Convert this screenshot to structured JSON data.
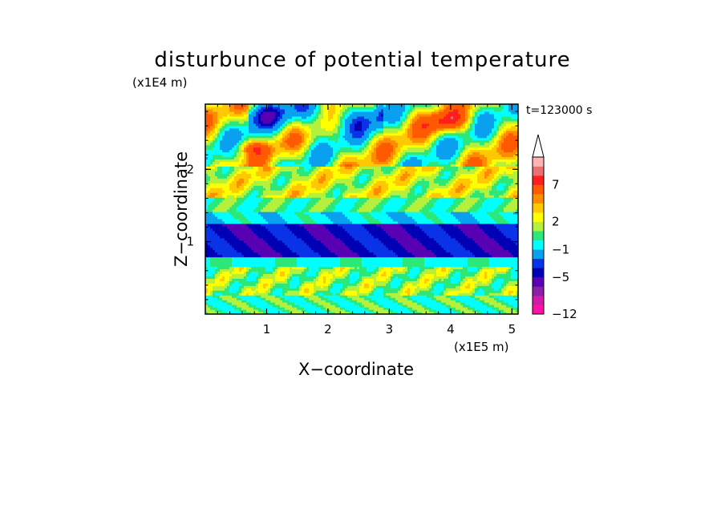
{
  "chart_data": {
    "type": "heatmap",
    "title": "disturbunce of potential temperature",
    "time_label": "t=123000 s",
    "xlabel": "X−coordinate",
    "ylabel": "Z−coordinate",
    "x_unit": "(x1E5 m)",
    "y_unit": "(x1E4 m)",
    "xlim": [
      0,
      5.1
    ],
    "ylim": [
      0,
      2.9
    ],
    "x_ticks": [
      1,
      2,
      3,
      4,
      5
    ],
    "x_tick_labels": [
      "1",
      "2",
      "3",
      "4",
      "5"
    ],
    "y_ticks": [
      1,
      2
    ],
    "y_tick_labels": [
      "1",
      "2"
    ],
    "colorbar": {
      "levels": [
        -12,
        -11,
        -9,
        -7,
        -5,
        -4,
        -3,
        -1,
        0,
        1,
        2,
        3,
        4,
        5,
        7,
        8,
        9
      ],
      "colors": [
        "#ff10a8",
        "#d21aa8",
        "#8c1ea8",
        "#5a00b4",
        "#0000b4",
        "#0a32e6",
        "#0aa0f0",
        "#00ffff",
        "#2ce878",
        "#b4f03c",
        "#ffff00",
        "#ffc800",
        "#ff8c00",
        "#ff5a00",
        "#ff1e1e",
        "#e87070",
        "#ffb4b4"
      ],
      "tick_values": [
        -12,
        -5,
        -1,
        2,
        7
      ],
      "tick_labels": [
        "−12",
        "−5",
        "−1",
        "2",
        "7"
      ],
      "extend": "max"
    }
  }
}
